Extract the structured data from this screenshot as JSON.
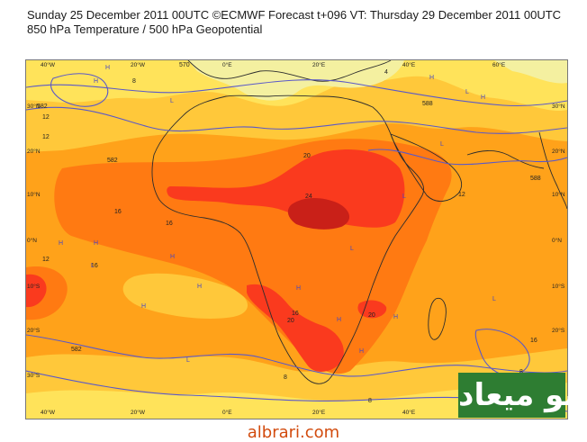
{
  "header": {
    "line1": "Sunday 25 December 2011 00UTC ©ECMWF Forecast t+096 VT: Thursday 29 December 2011 00UTC",
    "line2": "850 hPa Temperature / 500 hPa Geopotential"
  },
  "axes": {
    "top": [
      "40°W",
      "20°W",
      "0°E",
      "20°E",
      "40°E",
      "60°E"
    ],
    "bottom": [
      "40°W",
      "20°W",
      "0°E",
      "20°E",
      "40°E",
      "60°E"
    ],
    "left": [
      "30°N",
      "20°N",
      "10°N",
      "0°N",
      "10°S",
      "20°S",
      "30°S"
    ],
    "right": [
      "30°N",
      "20°N",
      "10°N",
      "0°N",
      "10°S",
      "20°S",
      "30°S"
    ]
  },
  "map": {
    "colors": {
      "cold": "#f4f0a0",
      "cool": "#ffe35a",
      "mild": "#ffc83a",
      "warm": "#ffa21a",
      "hot": "#ff7a12",
      "hotter": "#fa3a1e",
      "hottest": "#c92018",
      "contour": "#5a59c8",
      "coast": "#2d2d2d",
      "pressure_letter": "#4848c0"
    },
    "contour_labels": [
      "582",
      "582",
      "582",
      "588",
      "588",
      "570",
      "570",
      "12",
      "12",
      "12",
      "12",
      "16",
      "16",
      "16",
      "16",
      "16",
      "20",
      "20",
      "20",
      "24",
      "4",
      "8",
      "8",
      "8",
      "8"
    ],
    "pressure_letters": [
      "H",
      "H",
      "H",
      "H",
      "H",
      "H",
      "H",
      "H",
      "H",
      "H",
      "H",
      "H",
      "H",
      "L",
      "L",
      "L",
      "L",
      "L",
      "L",
      "L",
      "L"
    ]
  },
  "branding": {
    "watermark": "أبو ميعاد",
    "site": "albrari.com"
  }
}
